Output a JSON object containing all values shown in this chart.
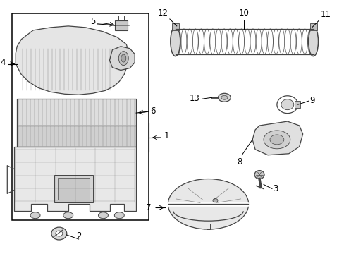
{
  "background_color": "#ffffff",
  "line_color": "#444444",
  "label_color": "#000000",
  "fig_width": 4.89,
  "fig_height": 3.6,
  "dpi": 100,
  "label_fontsize": 8.5
}
